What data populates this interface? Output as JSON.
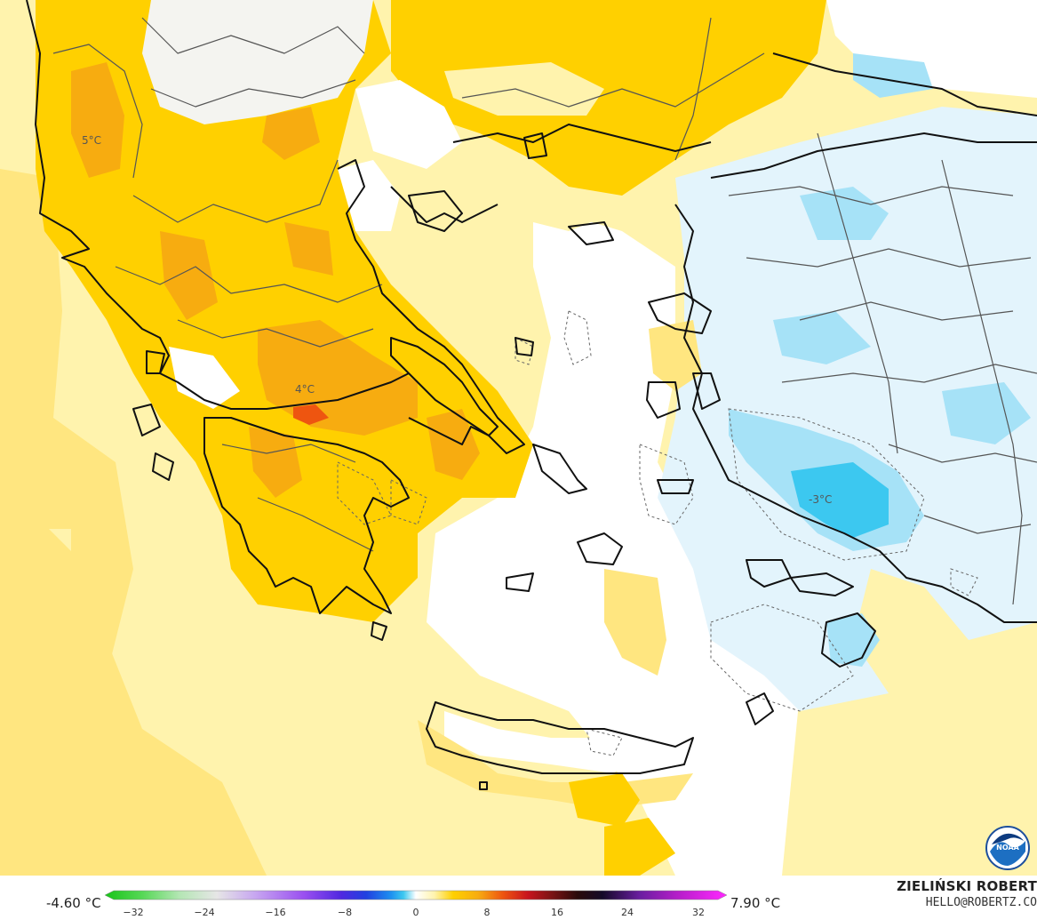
{
  "map": {
    "contour_labels": [
      {
        "text": "5°C"
      },
      {
        "text": "4°C"
      },
      {
        "text": "-3°C"
      }
    ]
  },
  "legend": {
    "min_value": "-4.60 °C",
    "max_value": "7.90 °C",
    "ticks": [
      "−32",
      "−24",
      "−16",
      "−8",
      "0",
      "8",
      "16",
      "24",
      "32"
    ]
  },
  "credit": {
    "author": "ZIELIŃSKI ROBERT",
    "email": "HELLO@ROBERTZ.CO",
    "logo": "noaa-logo"
  },
  "colors": {
    "pale_yellow": "#fff3ad",
    "yellow": "#ffe680",
    "gold": "#ffd000",
    "orange": "#f7ac10",
    "red_orange": "#ee5510",
    "light_blue": "#e3f4fc",
    "blue": "#a6e2f7",
    "cyan": "#3cc8f0"
  }
}
